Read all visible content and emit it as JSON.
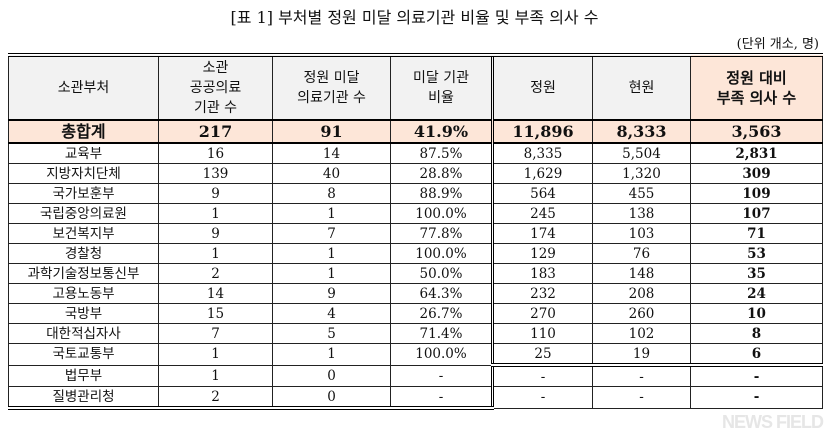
{
  "title": "[표 1] 부처별 정원 미달 의료기관 비율 및 부족 의사 수",
  "unit": "(단위 개소, 명)",
  "headers": [
    "소관부처",
    "소관\n공공의료\n기관 수",
    "정원 미달\n의료기관 수",
    "미달 기관\n비율",
    "정원",
    "현원",
    "정원 대비\n부족 의사 수"
  ],
  "total": [
    "총합계",
    "217",
    "91",
    "41.9%",
    "11,896",
    "8,333",
    "3,563"
  ],
  "rows": [
    [
      "교육부",
      "16",
      "14",
      "87.5%",
      "8,335",
      "5,504",
      "2,831"
    ],
    [
      "지방자치단체",
      "139",
      "40",
      "28.8%",
      "1,629",
      "1,320",
      "309"
    ],
    [
      "국가보훈부",
      "9",
      "8",
      "88.9%",
      "564",
      "455",
      "109"
    ],
    [
      "국립중앙의료원",
      "1",
      "1",
      "100.0%",
      "245",
      "138",
      "107"
    ],
    [
      "보건복지부",
      "9",
      "7",
      "77.8%",
      "174",
      "103",
      "71"
    ],
    [
      "경찰청",
      "1",
      "1",
      "100.0%",
      "129",
      "76",
      "53"
    ],
    [
      "과학기술정보통신부",
      "2",
      "1",
      "50.0%",
      "183",
      "148",
      "35"
    ],
    [
      "고용노동부",
      "14",
      "9",
      "64.3%",
      "232",
      "208",
      "24"
    ],
    [
      "국방부",
      "15",
      "4",
      "26.7%",
      "270",
      "260",
      "10"
    ],
    [
      "대한적십자사",
      "7",
      "5",
      "71.4%",
      "110",
      "102",
      "8"
    ],
    [
      "국토교통부",
      "1",
      "1",
      "100.0%",
      "25",
      "19",
      "6"
    ],
    [
      "법무부",
      "1",
      "0",
      "-",
      "-",
      "-",
      "-"
    ],
    [
      "질병관리청",
      "2",
      "0",
      "-",
      "-",
      "-",
      "-"
    ]
  ],
  "watermark": "NEWS FIELD"
}
